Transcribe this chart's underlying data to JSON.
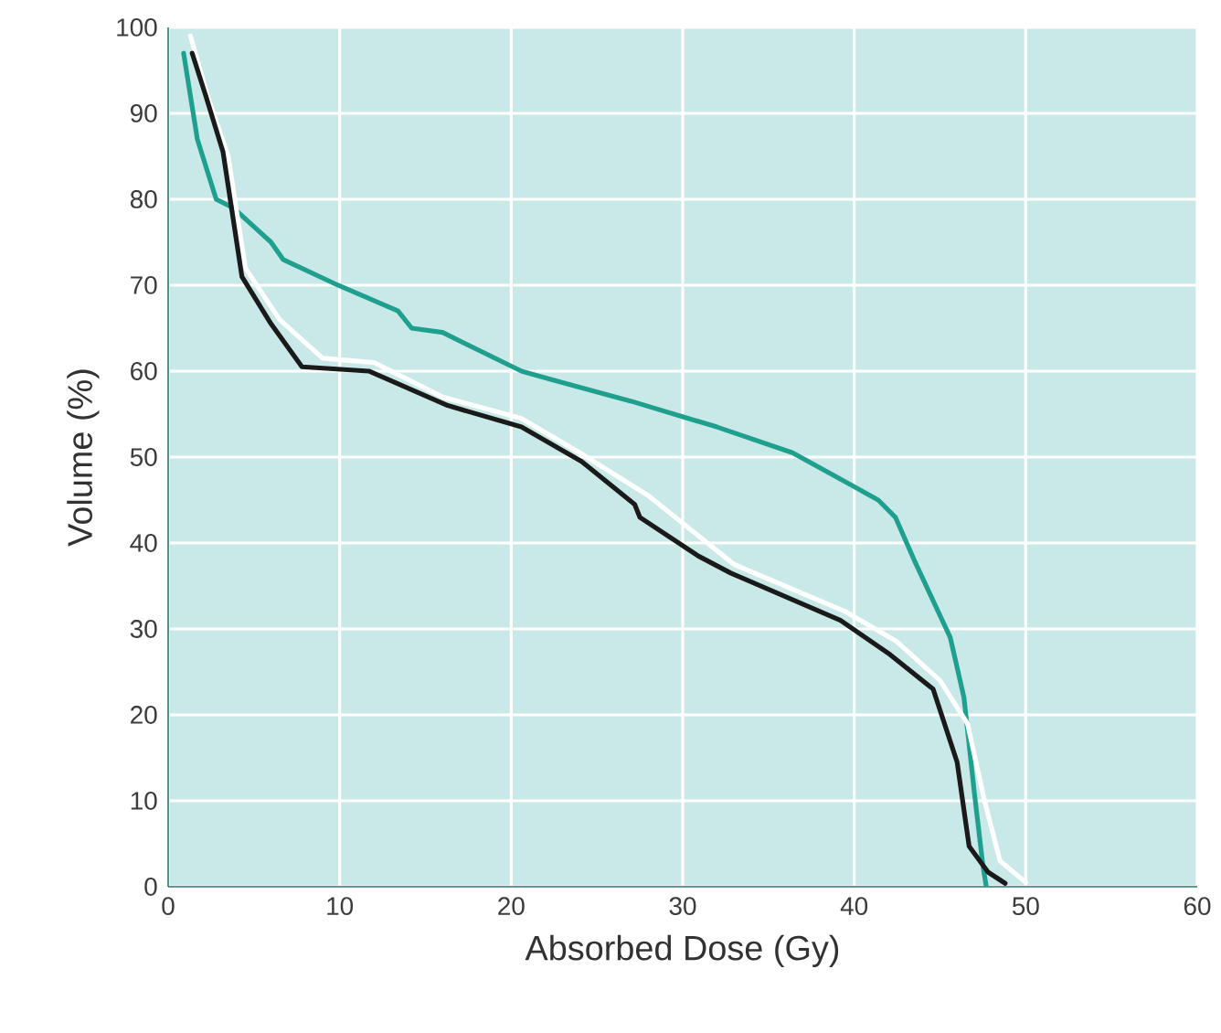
{
  "chart_data": {
    "type": "line",
    "xlabel": "Absorbed Dose (Gy)",
    "ylabel": "Volume (%)",
    "xlim": [
      0,
      60
    ],
    "ylim": [
      0,
      100
    ],
    "xticks": [
      0,
      10,
      20,
      30,
      40,
      50,
      60
    ],
    "yticks": [
      0,
      10,
      20,
      30,
      40,
      50,
      60,
      70,
      80,
      90,
      100
    ],
    "grid": true,
    "marker": "none",
    "line_style": "solid",
    "series": [
      {
        "color": "#1fa08f",
        "x": [
          0.9,
          1.7,
          2.8,
          3.8,
          6,
          6.7,
          9.9,
          13.4,
          14.2,
          16,
          20.6,
          22.4,
          27,
          32,
          36.4,
          39.6,
          41.4,
          42.4,
          43.5,
          45.6,
          46.4,
          47,
          47.5,
          47.7
        ],
        "values": [
          97,
          87,
          80,
          79,
          75,
          73,
          70,
          67,
          65,
          64.5,
          60,
          59,
          56.5,
          53.5,
          50.5,
          47,
          45,
          43,
          38,
          29,
          22,
          11,
          2.5,
          0
        ]
      },
      {
        "color": "#ffffff",
        "x": [
          1.3,
          2.3,
          3.5,
          4.5,
          6.5,
          9,
          12,
          16,
          20.6,
          24,
          28,
          33,
          39.5,
          42.5,
          45,
          46.6,
          47.6,
          48.5,
          50
        ],
        "values": [
          99,
          92,
          85,
          72,
          66,
          61.5,
          61,
          57,
          54.5,
          50.5,
          45.5,
          37.5,
          32,
          28.5,
          24,
          19,
          10,
          3,
          0.5
        ]
      },
      {
        "color": "#1a1a1a",
        "x": [
          1.4,
          2.2,
          3.2,
          4.3,
          6,
          7.8,
          11.7,
          16.3,
          20.6,
          24.1,
          27.2,
          27.5,
          30.9,
          32.8,
          39.2,
          42.1,
          44.6,
          46,
          46.7,
          47.8,
          48.8
        ],
        "values": [
          97,
          92,
          85.5,
          71,
          65.5,
          60.5,
          60,
          56,
          53.5,
          49.5,
          44.5,
          43,
          38.5,
          36.5,
          31,
          27,
          23,
          14.5,
          4.7,
          1.7,
          0.4
        ]
      }
    ]
  }
}
